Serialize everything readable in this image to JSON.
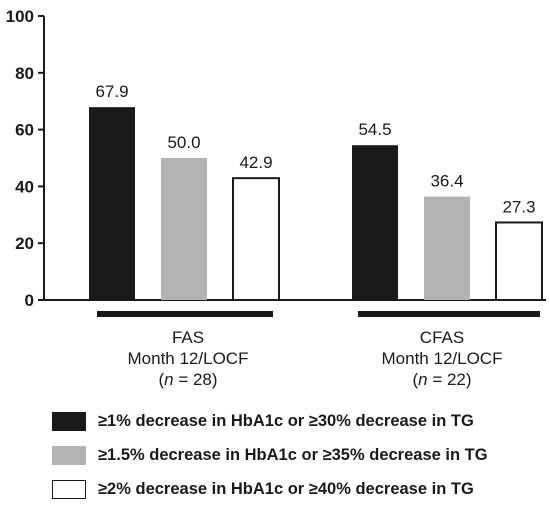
{
  "chart_data": {
    "type": "bar",
    "ylim": [
      0,
      100
    ],
    "yticks": [
      0,
      20,
      40,
      60,
      80,
      100
    ],
    "grid": false,
    "legend_position": "bottom",
    "groups": [
      {
        "line1": "FAS",
        "line2": "Month 12/LOCF",
        "n_prefix": "(",
        "n_italic": "n",
        "n_suffix": " = 28)"
      },
      {
        "line1": "CFAS",
        "line2": "Month 12/LOCF",
        "n_prefix": "(",
        "n_italic": "n",
        "n_suffix": " = 22)"
      }
    ],
    "series": [
      {
        "name": "≥1% decrease in HbA1c or ≥30% decrease in TG",
        "color": "#1a1a1a",
        "values": [
          67.9,
          54.5
        ],
        "labels": [
          "67.9",
          "54.5"
        ]
      },
      {
        "name": "≥1.5% decrease in HbA1c or ≥35% decrease in TG",
        "color": "#b3b3b3",
        "values": [
          50.0,
          36.4
        ],
        "labels": [
          "50.0",
          "36.4"
        ]
      },
      {
        "name": "≥2% decrease in HbA1c or ≥40% decrease in TG",
        "color": "#ffffff",
        "values": [
          42.9,
          27.3
        ],
        "labels": [
          "42.9",
          "27.3"
        ]
      }
    ]
  }
}
